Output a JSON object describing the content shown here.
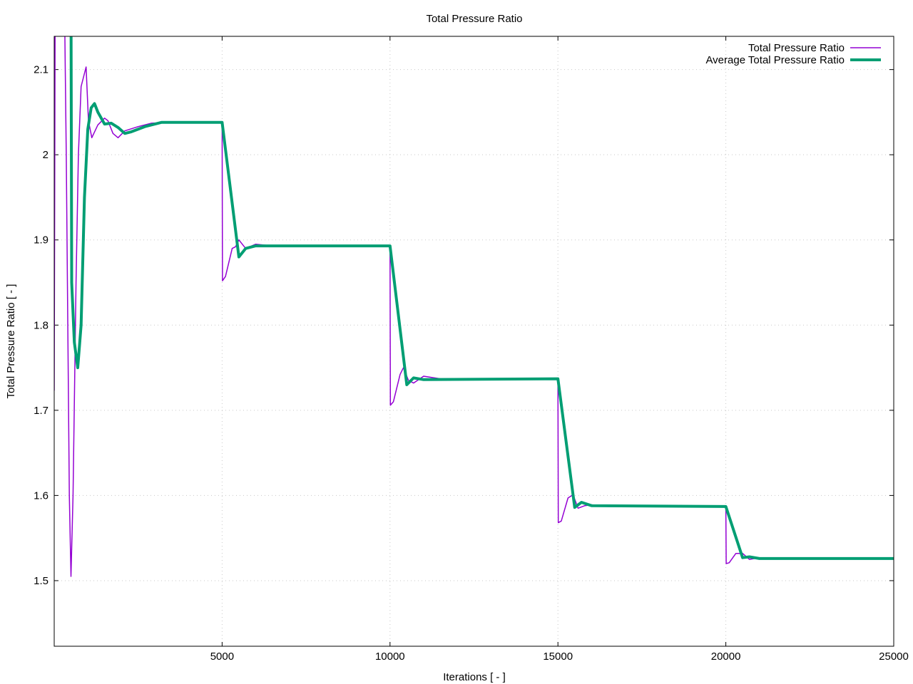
{
  "chart_data": {
    "type": "line",
    "title": "Total Pressure Ratio",
    "xlabel": "Iterations [ - ]",
    "ylabel": "Total Pressure Ratio [ - ]",
    "xlim": [
      0,
      25000
    ],
    "ylim": [
      1.423,
      2.139
    ],
    "xticks": [
      5000,
      10000,
      15000,
      20000,
      25000
    ],
    "xtick_labels": [
      "5000",
      "10000",
      "15000",
      "20000",
      "25000"
    ],
    "yticks": [
      1.5,
      1.6,
      1.7,
      1.8,
      1.9,
      2.0,
      2.1
    ],
    "ytick_labels": [
      "1.5",
      "1.6",
      "1.7",
      "1.8",
      "1.9",
      "2",
      "2.1"
    ],
    "grid": true,
    "legend_position": "top-right",
    "series": [
      {
        "name": "Total Pressure Ratio",
        "color": "#9400d3",
        "x": [
          0,
          30,
          300,
          360,
          450,
          500,
          560,
          650,
          720,
          800,
          950,
          1020,
          1120,
          1300,
          1500,
          1600,
          1750,
          1900,
          2100,
          2500,
          2900,
          3500,
          5000,
          5010,
          5100,
          5300,
          5400,
          5500,
          5700,
          6000,
          6500,
          10000,
          10010,
          10100,
          10300,
          10400,
          10550,
          10700,
          11000,
          11500,
          15000,
          15010,
          15100,
          15300,
          15450,
          15600,
          15800,
          16000,
          16500,
          20000,
          20010,
          20100,
          20300,
          20500,
          20700,
          21000,
          25000
        ],
        "y": [
          1.723,
          2.2,
          2.2,
          2.0,
          1.6,
          1.505,
          1.6,
          1.85,
          2.0,
          2.08,
          2.103,
          2.04,
          2.02,
          2.035,
          2.043,
          2.04,
          2.025,
          2.02,
          2.028,
          2.033,
          2.037,
          2.038,
          2.038,
          1.852,
          1.857,
          1.89,
          1.892,
          1.9,
          1.89,
          1.895,
          1.893,
          1.893,
          1.706,
          1.71,
          1.742,
          1.75,
          1.735,
          1.732,
          1.74,
          1.737,
          1.737,
          1.568,
          1.57,
          1.597,
          1.601,
          1.585,
          1.588,
          1.589,
          1.587,
          1.587,
          1.52,
          1.521,
          1.532,
          1.532,
          1.525,
          1.527,
          1.526
        ]
      },
      {
        "name": "Average Total Pressure Ratio",
        "color": "#009e73",
        "x": [
          500,
          520,
          600,
          700,
          800,
          900,
          1000,
          1100,
          1200,
          1300,
          1500,
          1700,
          1900,
          2100,
          2300,
          2700,
          3200,
          5000,
          5500,
          5700,
          6000,
          10000,
          10500,
          10700,
          11000,
          15000,
          15500,
          15700,
          16000,
          20000,
          20500,
          20700,
          21000,
          25000
        ],
        "y": [
          2.2,
          1.85,
          1.78,
          1.75,
          1.8,
          1.95,
          2.03,
          2.055,
          2.06,
          2.05,
          2.036,
          2.037,
          2.032,
          2.025,
          2.027,
          2.033,
          2.038,
          2.038,
          1.88,
          1.89,
          1.893,
          1.893,
          1.73,
          1.738,
          1.736,
          1.737,
          1.586,
          1.592,
          1.588,
          1.587,
          1.527,
          1.528,
          1.526,
          1.526
        ]
      }
    ]
  }
}
